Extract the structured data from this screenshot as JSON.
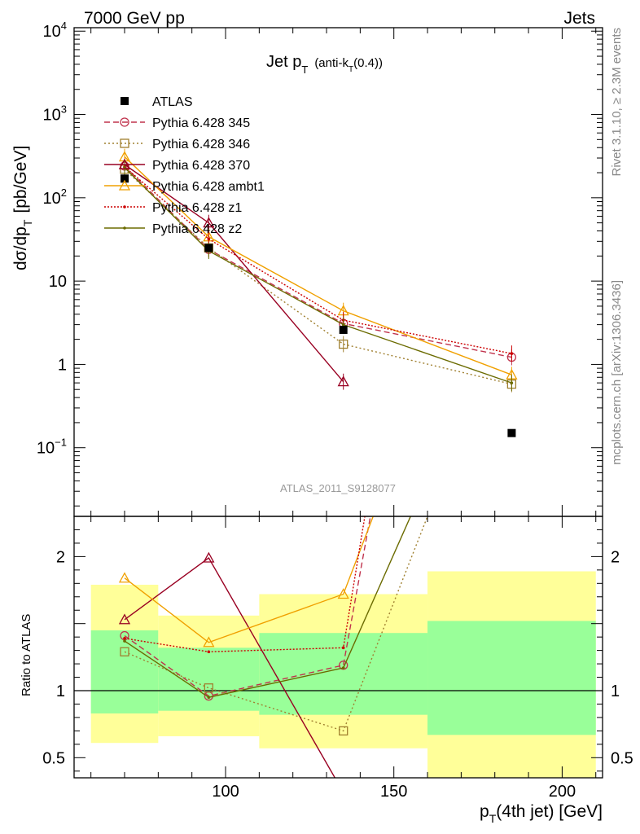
{
  "header": {
    "left": "7000 GeV pp",
    "right": "Jets"
  },
  "side_labels": {
    "rivet": "Rivet 3.1.10, ≥ 2.3M events",
    "mcplots": "mcplots.cern.ch [arXiv:1306.3436]"
  },
  "chart_data": {
    "type": "line",
    "title": {
      "main": "Jet p",
      "sub": "T",
      "suffix": "(anti-k",
      "suffix_sub": "T",
      "suffix_end": "(0.4))"
    },
    "watermark": "ATLAS_2011_S9128077",
    "ylabel_main": {
      "text": "dσ/dp",
      "sub": "T",
      "unit": "[pb/GeV]"
    },
    "ylabel_ratio": "Ratio to ATLAS",
    "xlabel": {
      "text": "p",
      "sub": "T",
      "suffix": "(4th jet) [GeV]"
    },
    "xlim": [
      55,
      212
    ],
    "ylim_main": [
      0.015,
      11000
    ],
    "y_scale_main": "log",
    "ylim_ratio": [
      0.35,
      2.3
    ],
    "x_ticks": [
      100,
      150,
      200
    ],
    "y_ticks_main": [
      {
        "v": 10000,
        "base": "10",
        "exp": "4"
      },
      {
        "v": 1000,
        "base": "10",
        "exp": "3"
      },
      {
        "v": 100,
        "base": "10",
        "exp": "2"
      },
      {
        "v": 10,
        "base": "10",
        "exp": ""
      },
      {
        "v": 1,
        "base": "1",
        "exp": ""
      },
      {
        "v": 0.1,
        "base": "10",
        "exp": "−1"
      }
    ],
    "y_ticks_ratio": [
      {
        "v": 2,
        "label": "2"
      },
      {
        "v": 1,
        "label": "1"
      },
      {
        "v": 0.5,
        "label": "0.5"
      }
    ],
    "bins": [
      {
        "lo": 60,
        "hi": 80,
        "x": 70
      },
      {
        "lo": 80,
        "hi": 110,
        "x": 95
      },
      {
        "lo": 110,
        "hi": 160,
        "x": 135
      },
      {
        "lo": 160,
        "hi": 210,
        "x": 185
      }
    ],
    "data": {
      "name": "ATLAS",
      "color": "#000000",
      "values": [
        170,
        25,
        2.6,
        0.15
      ],
      "band_inner": [
        [
          0.83,
          1.45
        ],
        [
          0.85,
          1.32
        ],
        [
          0.82,
          1.43
        ],
        [
          0.67,
          1.52
        ]
      ],
      "band_outer": [
        [
          0.61,
          1.79
        ],
        [
          0.66,
          1.56
        ],
        [
          0.57,
          1.72
        ],
        [
          0.32,
          1.89
        ]
      ]
    },
    "series": [
      {
        "name": "Pythia 6.428 345",
        "color": "#c0334d",
        "dash": "7,4",
        "marker": "circle",
        "values": [
          240,
          24,
          3.1,
          1.22
        ],
        "ratio": [
          1.41,
          0.96,
          1.19,
          8.1
        ]
      },
      {
        "name": "Pythia 6.428 346",
        "color": "#a08030",
        "dash": "2,3",
        "marker": "square",
        "values": [
          220,
          25,
          1.75,
          0.58
        ],
        "ratio": [
          1.29,
          1.02,
          0.7,
          3.9
        ]
      },
      {
        "name": "Pythia 6.428 370",
        "color": "#990022",
        "dash": "",
        "marker": "triangle",
        "values": [
          250,
          50,
          0.62,
          null
        ],
        "ratio": [
          1.53,
          1.99,
          0.24,
          null
        ]
      },
      {
        "name": "Pythia 6.428 ambt1",
        "color": "#f0a000",
        "dash": "",
        "marker": "triangle",
        "values": [
          310,
          34,
          4.4,
          0.75
        ],
        "ratio": [
          1.84,
          1.36,
          1.72,
          5.0
        ]
      },
      {
        "name": "Pythia 6.428 z1",
        "color": "#cc0000",
        "dash": "2,2",
        "marker": "dot",
        "values": [
          235,
          32,
          3.4,
          1.35
        ],
        "ratio": [
          1.39,
          1.29,
          1.32,
          9.0
        ]
      },
      {
        "name": "Pythia 6.428 z2",
        "color": "#6b6b00",
        "dash": "",
        "marker": "dot",
        "values": [
          230,
          23,
          3.0,
          0.6
        ],
        "ratio": [
          1.37,
          0.95,
          1.17,
          4.0
        ]
      }
    ]
  }
}
